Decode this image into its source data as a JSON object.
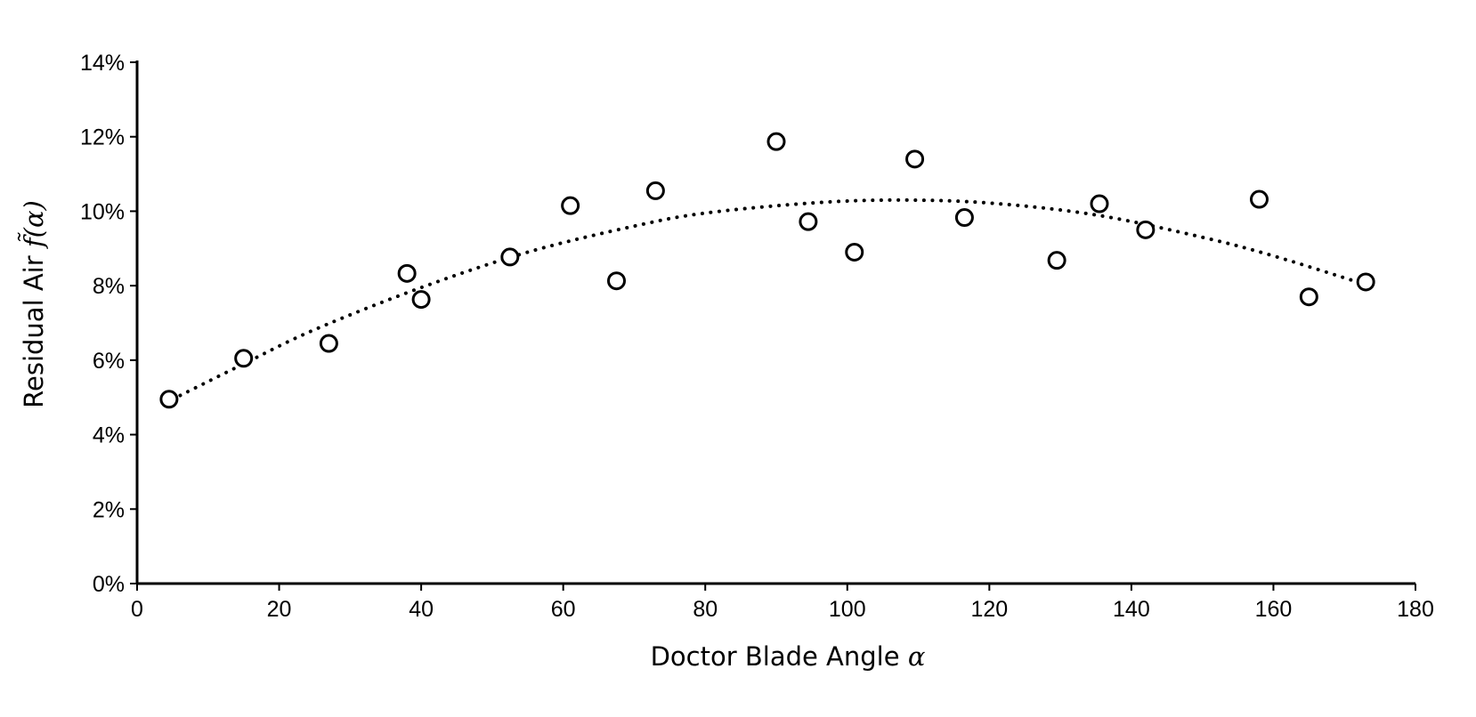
{
  "chart_data": {
    "type": "scatter",
    "xlabel": "Doctor Blade Angle",
    "xlabel_symbol": "α",
    "ylabel": "Residual Air",
    "ylabel_symbol": "f̃(α)",
    "xlim": [
      0,
      180
    ],
    "ylim": [
      0,
      0.14
    ],
    "x_ticks": [
      0,
      20,
      40,
      60,
      80,
      100,
      120,
      140,
      160,
      180
    ],
    "x_tick_labels": [
      "0",
      "20",
      "40",
      "60",
      "80",
      "100",
      "120",
      "140",
      "160",
      "180"
    ],
    "y_ticks": [
      0,
      0.02,
      0.04,
      0.06,
      0.08,
      0.1,
      0.12,
      0.14
    ],
    "y_tick_labels": [
      "0%",
      "2%",
      "4%",
      "6%",
      "8%",
      "10%",
      "12%",
      "14%"
    ],
    "grid": false,
    "legend": "none",
    "series": [
      {
        "style": "open-circle",
        "points": [
          {
            "x": 4.5,
            "y": 0.0495
          },
          {
            "x": 15,
            "y": 0.0605
          },
          {
            "x": 27,
            "y": 0.0645
          },
          {
            "x": 38,
            "y": 0.0833
          },
          {
            "x": 40,
            "y": 0.0763
          },
          {
            "x": 52.5,
            "y": 0.0877
          },
          {
            "x": 61,
            "y": 0.1015
          },
          {
            "x": 67.5,
            "y": 0.0813
          },
          {
            "x": 73,
            "y": 0.1055
          },
          {
            "x": 90,
            "y": 0.1187
          },
          {
            "x": 94.5,
            "y": 0.0972
          },
          {
            "x": 101,
            "y": 0.089
          },
          {
            "x": 109.5,
            "y": 0.114
          },
          {
            "x": 116.5,
            "y": 0.0983
          },
          {
            "x": 129.5,
            "y": 0.0868
          },
          {
            "x": 135.5,
            "y": 0.102
          },
          {
            "x": 142,
            "y": 0.095
          },
          {
            "x": 158,
            "y": 0.1032
          },
          {
            "x": 165,
            "y": 0.077
          },
          {
            "x": 173,
            "y": 0.081
          }
        ]
      },
      {
        "style": "dotted-line",
        "fit": "quadratic",
        "points": [
          {
            "x": 5,
            "y": 0.0495
          },
          {
            "x": 15,
            "y": 0.059
          },
          {
            "x": 25,
            "y": 0.0682
          },
          {
            "x": 40,
            "y": 0.0795
          },
          {
            "x": 55,
            "y": 0.089
          },
          {
            "x": 70,
            "y": 0.096
          },
          {
            "x": 80,
            "y": 0.0995
          },
          {
            "x": 95,
            "y": 0.1022
          },
          {
            "x": 107,
            "y": 0.103
          },
          {
            "x": 120,
            "y": 0.1022
          },
          {
            "x": 135,
            "y": 0.099
          },
          {
            "x": 150,
            "y": 0.093
          },
          {
            "x": 160,
            "y": 0.088
          },
          {
            "x": 173,
            "y": 0.0803
          }
        ]
      }
    ]
  }
}
